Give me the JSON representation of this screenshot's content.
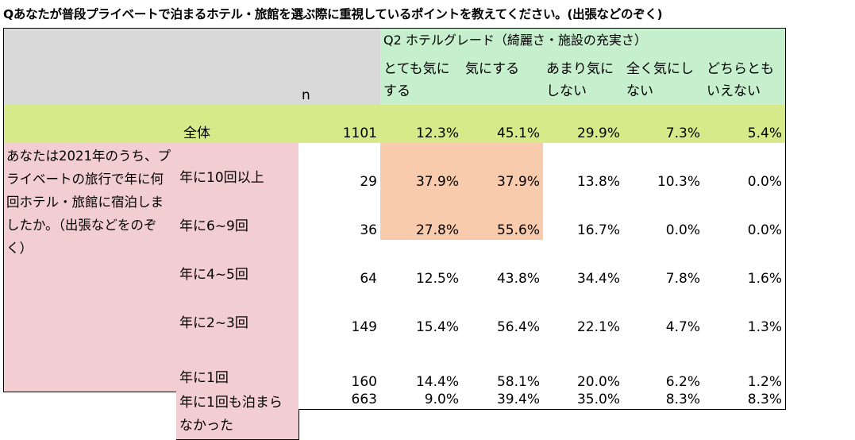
{
  "title": "Qあなたが普段プライベートで泊まるホテル・旅館を選ぶ際に重視しているポイントを教えてください。(出張などのぞく)",
  "chart_data": {
    "type": "table",
    "question_header": "Q2 ホテルグレード（綺麗さ・施設の充実さ）",
    "n_header": "n",
    "columns": [
      "とても気に\nする",
      "気にする",
      "あまり気に\nしない",
      "全く気にし\nない",
      "どちらとも\nいえない"
    ],
    "total": {
      "label": "全体",
      "n": "1101",
      "values": [
        "12.3%",
        "45.1%",
        "29.9%",
        "7.3%",
        "5.4%"
      ]
    },
    "row_group_label": "あなたは2021年のうち、プライベートの旅行で年に何回ホテル・旅館に宿泊しましたか。（出張などをのぞく）",
    "rows": [
      {
        "label": "年に10回以上",
        "n": "29",
        "values": [
          "37.9%",
          "37.9%",
          "13.8%",
          "10.3%",
          "0.0%"
        ],
        "highlight": [
          true,
          true,
          false,
          false,
          false
        ]
      },
      {
        "label": "年に6~9回",
        "n": "36",
        "values": [
          "27.8%",
          "55.6%",
          "16.7%",
          "0.0%",
          "0.0%"
        ],
        "highlight": [
          true,
          true,
          false,
          false,
          false
        ]
      },
      {
        "label": "年に4~5回",
        "n": "64",
        "values": [
          "12.5%",
          "43.8%",
          "34.4%",
          "7.8%",
          "1.6%"
        ],
        "highlight": [
          false,
          false,
          false,
          false,
          false
        ]
      },
      {
        "label": "年に2~3回",
        "n": "149",
        "values": [
          "15.4%",
          "56.4%",
          "22.1%",
          "4.7%",
          "1.3%"
        ],
        "highlight": [
          false,
          false,
          false,
          false,
          false
        ]
      },
      {
        "label": "年に1回",
        "n": "160",
        "values": [
          "14.4%",
          "58.1%",
          "20.0%",
          "6.2%",
          "1.2%"
        ],
        "highlight": [
          false,
          false,
          false,
          false,
          false
        ]
      },
      {
        "label": "年に1回も泊まら\nなかった",
        "n": "663",
        "values": [
          "9.0%",
          "39.4%",
          "35.0%",
          "8.3%",
          "8.3%"
        ],
        "highlight": [
          false,
          false,
          false,
          false,
          false
        ]
      }
    ],
    "colors": {
      "header_gray": "#d9d9d9",
      "header_green": "#c6efce",
      "total_lime": "#d8e98a",
      "label_pink": "#f2cdd2",
      "highlight_orange": "#f8cbad"
    }
  }
}
